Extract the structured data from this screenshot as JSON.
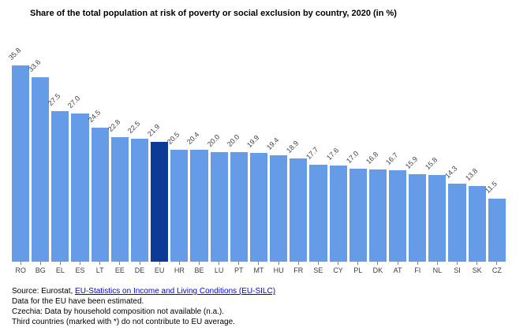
{
  "title": "Share of the total population at risk of poverty or social exclusion by country, 2020 (in %)",
  "chart_data": {
    "type": "bar",
    "title": "Share of the total population at risk of poverty or social exclusion by country, 2020 (in %)",
    "categories": [
      "RO",
      "BG",
      "EL",
      "ES",
      "LT",
      "EE",
      "DE",
      "EU",
      "HR",
      "BE",
      "LU",
      "PT",
      "MT",
      "HU",
      "FR",
      "SE",
      "CY",
      "PL",
      "DK",
      "AT",
      "FI",
      "NL",
      "SI",
      "SK",
      "CZ"
    ],
    "values": [
      35.8,
      33.6,
      27.5,
      27.0,
      24.5,
      22.8,
      22.5,
      21.9,
      20.5,
      20.4,
      20.0,
      20.0,
      19.9,
      19.4,
      18.9,
      17.7,
      17.6,
      17.0,
      16.8,
      16.7,
      15.9,
      15.8,
      14.3,
      13.8,
      11.5
    ],
    "value_label_format": "one_decimal",
    "highlight_category": "EU",
    "bar_color": "#669BE8",
    "highlight_color": "#0C3A96",
    "xlabel": "",
    "ylabel": "",
    "ylim": [
      0,
      36
    ],
    "grid": false,
    "legend": "none",
    "value_labels_rotated_degrees": -45
  },
  "footer": {
    "source_prefix": "Source: Eurostat, ",
    "source_link": "EU-Statistics on Income and Living Conditions (EU-SILC)",
    "line2": "Data for the EU have been estimated.",
    "line3": "Czechia: Data by household composition not available (n.a.).",
    "line4": "Third countries (marked with *) do not contribute to EU average."
  },
  "colors": {
    "link": "#0000EE",
    "title_text": "#000000",
    "axis_label": "#3c3c3c",
    "tick": "#808080"
  }
}
